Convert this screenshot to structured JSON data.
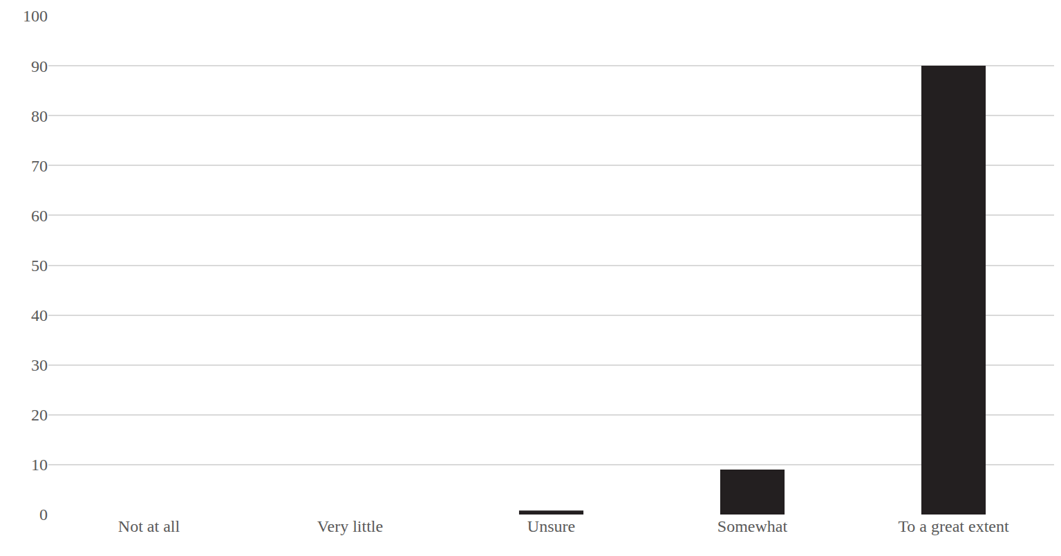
{
  "chart_data": {
    "type": "bar",
    "categories": [
      "Not at all",
      "Very little",
      "Unsure",
      "Somewhat",
      "To a great extent"
    ],
    "values": [
      0,
      0,
      0.8,
      9,
      90
    ],
    "color": "#231f20",
    "ylim": [
      0,
      100
    ],
    "yticks": [
      0,
      10,
      20,
      30,
      40,
      50,
      60,
      70,
      80,
      90,
      100
    ],
    "grid": true
  }
}
